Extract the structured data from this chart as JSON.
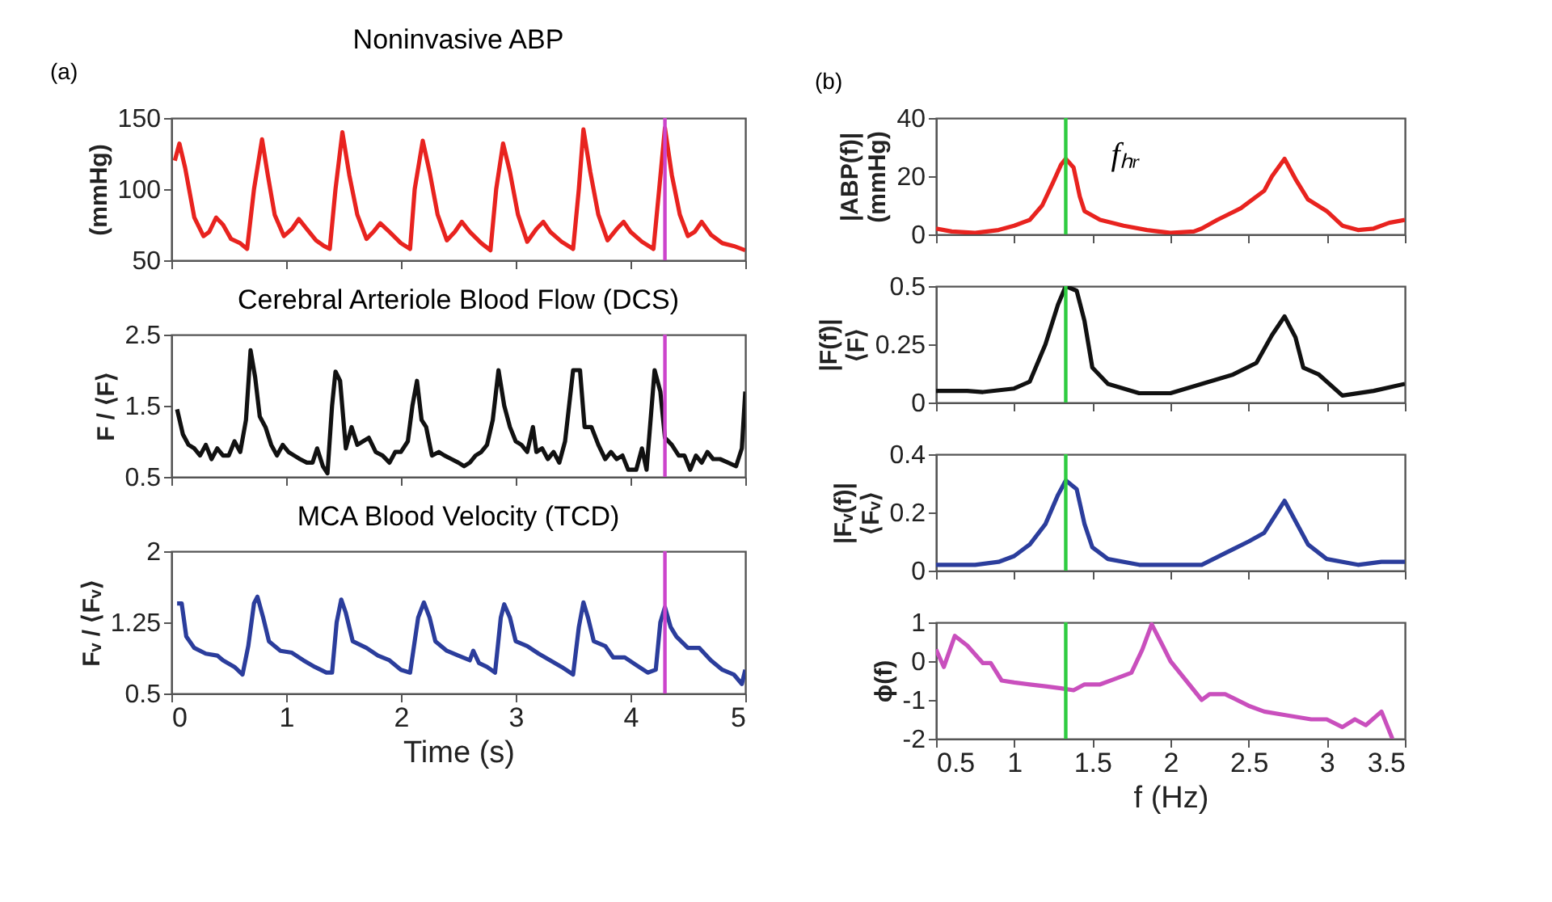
{
  "chart_data": [
    {
      "type": "line",
      "title": "Noninvasive ABP",
      "ylabel": "(mmHg)",
      "color": "#e8231f",
      "xlim": [
        0,
        5
      ],
      "xticks": [
        0,
        1,
        2,
        3,
        4,
        5
      ],
      "ylim": [
        50,
        150
      ],
      "yticks": [
        50,
        100,
        150
      ],
      "tick_labels": "y",
      "annotations": [
        "(a)"
      ],
      "ref_lines": [
        {
          "axis": "x",
          "value": 4.3,
          "color": "#cc44cc"
        }
      ],
      "x": [
        0.03,
        0.07,
        0.12,
        0.2,
        0.28,
        0.33,
        0.39,
        0.45,
        0.52,
        0.6,
        0.66,
        0.72,
        0.79,
        0.84,
        0.9,
        0.98,
        1.05,
        1.11,
        1.18,
        1.26,
        1.33,
        1.38,
        1.43,
        1.49,
        1.55,
        1.62,
        1.7,
        1.76,
        1.82,
        1.9,
        2.0,
        2.08,
        2.12,
        2.19,
        2.25,
        2.32,
        2.4,
        2.47,
        2.53,
        2.6,
        2.7,
        2.78,
        2.83,
        2.89,
        2.95,
        3.02,
        3.1,
        3.18,
        3.24,
        3.3,
        3.4,
        3.5,
        3.55,
        3.59,
        3.65,
        3.72,
        3.8,
        3.88,
        3.94,
        4.0,
        4.1,
        4.2,
        4.25,
        4.3,
        4.36,
        4.43,
        4.5,
        4.56,
        4.62,
        4.7,
        4.8,
        4.9,
        5.0
      ],
      "values": [
        120,
        132,
        115,
        80,
        67,
        70,
        80,
        75,
        65,
        62,
        58,
        100,
        135,
        110,
        82,
        67,
        72,
        79,
        72,
        64,
        60,
        58,
        100,
        140,
        110,
        82,
        65,
        70,
        76,
        70,
        62,
        58,
        100,
        134,
        112,
        82,
        64,
        70,
        77,
        70,
        62,
        57,
        100,
        132,
        112,
        82,
        63,
        72,
        77,
        70,
        63,
        58,
        100,
        142,
        112,
        82,
        64,
        72,
        77,
        70,
        63,
        58,
        100,
        143,
        110,
        82,
        67,
        70,
        77,
        68,
        62,
        60,
        57
      ]
    },
    {
      "type": "line",
      "title": "Cerebral Arteriole Blood Flow (DCS)",
      "ylabel": "F / ⟨F⟩",
      "color": "#111111",
      "xlim": [
        0,
        5
      ],
      "xticks": [
        0,
        1,
        2,
        3,
        4,
        5
      ],
      "ylim": [
        0.5,
        2.5
      ],
      "yticks": [
        0.5,
        1.5,
        2.5
      ],
      "tick_labels": "y",
      "ref_lines": [
        {
          "axis": "x",
          "value": 4.3,
          "color": "#cc44cc"
        }
      ],
      "x": [
        0.05,
        0.1,
        0.15,
        0.2,
        0.25,
        0.3,
        0.35,
        0.4,
        0.45,
        0.5,
        0.55,
        0.6,
        0.65,
        0.69,
        0.73,
        0.77,
        0.82,
        0.87,
        0.92,
        0.97,
        1.02,
        1.07,
        1.12,
        1.18,
        1.23,
        1.27,
        1.32,
        1.36,
        1.4,
        1.43,
        1.47,
        1.52,
        1.57,
        1.62,
        1.67,
        1.72,
        1.78,
        1.84,
        1.9,
        1.95,
        2.0,
        2.06,
        2.1,
        2.14,
        2.18,
        2.22,
        2.27,
        2.33,
        2.38,
        2.44,
        2.5,
        2.55,
        2.6,
        2.65,
        2.7,
        2.75,
        2.8,
        2.85,
        2.9,
        2.95,
        3.0,
        3.05,
        3.1,
        3.15,
        3.18,
        3.23,
        3.28,
        3.33,
        3.38,
        3.43,
        3.5,
        3.56,
        3.6,
        3.66,
        3.72,
        3.78,
        3.83,
        3.88,
        3.93,
        3.98,
        4.05,
        4.1,
        4.14,
        4.18,
        4.21,
        4.26,
        4.3,
        4.36,
        4.42,
        4.47,
        4.52,
        4.57,
        4.62,
        4.67,
        4.72,
        4.78,
        4.85,
        4.92,
        4.97,
        5.0
      ],
      "values": [
        1.45,
        1.1,
        0.95,
        0.9,
        0.8,
        0.95,
        0.75,
        0.9,
        0.8,
        0.8,
        1.0,
        0.85,
        1.3,
        2.28,
        1.9,
        1.35,
        1.2,
        0.95,
        0.8,
        0.95,
        0.85,
        0.8,
        0.75,
        0.7,
        0.7,
        0.9,
        0.65,
        0.55,
        1.5,
        1.98,
        1.85,
        0.9,
        1.2,
        0.95,
        1.0,
        1.05,
        0.85,
        0.8,
        0.7,
        0.85,
        0.85,
        1.0,
        1.5,
        1.85,
        1.3,
        1.2,
        0.8,
        0.85,
        0.8,
        0.75,
        0.7,
        0.65,
        0.7,
        0.8,
        0.85,
        0.95,
        1.3,
        2.0,
        1.5,
        1.2,
        1.0,
        0.95,
        0.85,
        1.2,
        0.85,
        0.9,
        0.75,
        0.85,
        0.7,
        1.0,
        2.0,
        2.0,
        1.2,
        1.2,
        0.95,
        0.75,
        0.85,
        0.75,
        0.8,
        0.6,
        0.6,
        0.9,
        0.6,
        1.4,
        2.0,
        1.7,
        1.05,
        0.95,
        0.8,
        0.8,
        0.6,
        0.8,
        0.7,
        0.85,
        0.75,
        0.75,
        0.7,
        0.65,
        0.9,
        1.7
      ]
    },
    {
      "type": "line",
      "title": "MCA Blood Velocity (TCD)",
      "ylabel": "Fᵥ / ⟨Fᵥ⟩",
      "xlabel": "Time (s)",
      "color": "#2b3d9c",
      "xlim": [
        0,
        5
      ],
      "xticks": [
        0,
        1,
        2,
        3,
        4,
        5
      ],
      "ylim": [
        0.5,
        2
      ],
      "yticks": [
        0.5,
        1.25,
        2
      ],
      "ref_lines": [
        {
          "axis": "x",
          "value": 4.3,
          "color": "#cc44cc"
        }
      ],
      "x": [
        0.05,
        0.09,
        0.13,
        0.2,
        0.3,
        0.4,
        0.45,
        0.55,
        0.62,
        0.67,
        0.72,
        0.75,
        0.8,
        0.85,
        0.95,
        1.05,
        1.15,
        1.25,
        1.35,
        1.4,
        1.44,
        1.48,
        1.52,
        1.58,
        1.7,
        1.8,
        1.9,
        2.0,
        2.08,
        2.15,
        2.2,
        2.25,
        2.3,
        2.4,
        2.5,
        2.6,
        2.63,
        2.68,
        2.75,
        2.82,
        2.87,
        2.9,
        2.95,
        3.0,
        3.1,
        3.2,
        3.3,
        3.4,
        3.5,
        3.55,
        3.59,
        3.63,
        3.68,
        3.78,
        3.85,
        3.95,
        4.05,
        4.15,
        4.22,
        4.26,
        4.3,
        4.35,
        4.4,
        4.5,
        4.6,
        4.7,
        4.8,
        4.9,
        4.97,
        5.0
      ],
      "values": [
        1.45,
        1.45,
        1.1,
        0.98,
        0.92,
        0.9,
        0.85,
        0.78,
        0.7,
        1.0,
        1.45,
        1.52,
        1.3,
        1.05,
        0.95,
        0.93,
        0.85,
        0.78,
        0.72,
        0.72,
        1.25,
        1.49,
        1.35,
        1.05,
        0.98,
        0.9,
        0.85,
        0.75,
        0.72,
        1.3,
        1.46,
        1.3,
        1.05,
        0.95,
        0.9,
        0.85,
        0.95,
        0.82,
        0.78,
        0.72,
        1.3,
        1.44,
        1.3,
        1.05,
        1.0,
        0.92,
        0.85,
        0.78,
        0.7,
        1.2,
        1.46,
        1.3,
        1.05,
        1.0,
        0.88,
        0.88,
        0.8,
        0.72,
        0.75,
        1.25,
        1.41,
        1.2,
        1.1,
        0.98,
        0.98,
        0.85,
        0.75,
        0.7,
        0.6,
        0.75
      ]
    },
    {
      "type": "line",
      "ylabel": "|ABP(f)|\n(mmHg)",
      "color": "#e8231f",
      "xlim": [
        0.5,
        3.5
      ],
      "xticks": [
        0.5,
        1,
        1.5,
        2,
        2.5,
        3,
        3.5
      ],
      "ylim": [
        0,
        40
      ],
      "yticks": [
        0,
        20,
        40
      ],
      "tick_labels": "y",
      "annotations": [
        "(b)",
        {
          "text": "fₕᵣ",
          "x": 1.33,
          "y": 26
        }
      ],
      "ref_lines": [
        {
          "axis": "x",
          "value": 1.33,
          "color": "#2ecc40"
        }
      ],
      "x": [
        0.5,
        0.6,
        0.75,
        0.9,
        1.0,
        1.1,
        1.18,
        1.25,
        1.3,
        1.33,
        1.38,
        1.42,
        1.45,
        1.55,
        1.7,
        1.85,
        2.0,
        2.15,
        2.2,
        2.3,
        2.45,
        2.6,
        2.65,
        2.73,
        2.8,
        2.88,
        3.0,
        3.1,
        3.2,
        3.3,
        3.4,
        3.5
      ],
      "values": [
        2,
        1,
        0.5,
        1.5,
        3,
        5,
        10,
        18,
        24,
        26,
        23,
        13,
        8,
        5,
        3,
        1.5,
        0.5,
        1,
        2,
        5,
        9,
        15,
        20,
        26,
        19,
        12,
        8,
        3,
        1.5,
        2,
        4,
        5
      ]
    },
    {
      "type": "line",
      "ylabel": "|F(f)|\n⟨F⟩",
      "color": "#111111",
      "xlim": [
        0.5,
        3.5
      ],
      "xticks": [
        0.5,
        1,
        1.5,
        2,
        2.5,
        3,
        3.5
      ],
      "ylim": [
        0,
        0.5
      ],
      "yticks": [
        0,
        0.25,
        0.5
      ],
      "tick_labels": "y",
      "ref_lines": [
        {
          "axis": "x",
          "value": 1.33,
          "color": "#2ecc40"
        }
      ],
      "x": [
        0.5,
        0.7,
        0.8,
        1.0,
        1.1,
        1.2,
        1.28,
        1.33,
        1.4,
        1.45,
        1.5,
        1.6,
        1.8,
        2.0,
        2.2,
        2.4,
        2.55,
        2.65,
        2.73,
        2.8,
        2.85,
        2.95,
        3.1,
        3.3,
        3.5
      ],
      "values": [
        0.05,
        0.05,
        0.045,
        0.06,
        0.09,
        0.25,
        0.42,
        0.5,
        0.48,
        0.35,
        0.15,
        0.08,
        0.04,
        0.04,
        0.08,
        0.12,
        0.17,
        0.29,
        0.37,
        0.28,
        0.15,
        0.12,
        0.03,
        0.05,
        0.08
      ]
    },
    {
      "type": "line",
      "ylabel": "|Fᵥ(f)|\n⟨Fᵥ⟩",
      "color": "#2b3d9c",
      "xlim": [
        0.5,
        3.5
      ],
      "xticks": [
        0.5,
        1,
        1.5,
        2,
        2.5,
        3,
        3.5
      ],
      "ylim": [
        0,
        0.4
      ],
      "yticks": [
        0,
        0.2,
        0.4
      ],
      "tick_labels": "y",
      "ref_lines": [
        {
          "axis": "x",
          "value": 1.33,
          "color": "#2ecc40"
        }
      ],
      "x": [
        0.5,
        0.75,
        0.9,
        1.0,
        1.1,
        1.2,
        1.28,
        1.33,
        1.4,
        1.45,
        1.5,
        1.6,
        1.8,
        2.0,
        2.2,
        2.35,
        2.5,
        2.6,
        2.73,
        2.8,
        2.88,
        3.0,
        3.2,
        3.35,
        3.5
      ],
      "values": [
        0.02,
        0.02,
        0.03,
        0.05,
        0.09,
        0.16,
        0.26,
        0.31,
        0.28,
        0.16,
        0.08,
        0.04,
        0.02,
        0.02,
        0.02,
        0.06,
        0.1,
        0.13,
        0.24,
        0.17,
        0.09,
        0.04,
        0.02,
        0.03,
        0.03
      ]
    },
    {
      "type": "line",
      "ylabel": "ϕ(f)",
      "xlabel": "f (Hz)",
      "color": "#c94fbd",
      "xlim": [
        0.5,
        3.5
      ],
      "xticks": [
        0.5,
        1,
        1.5,
        2,
        2.5,
        3,
        3.5
      ],
      "ylim": [
        -2,
        1
      ],
      "yticks": [
        -2,
        -1,
        0,
        1
      ],
      "ref_lines": [
        {
          "axis": "x",
          "value": 1.33,
          "color": "#2ecc40"
        }
      ],
      "x": [
        0.5,
        0.55,
        0.62,
        0.7,
        0.8,
        0.85,
        0.92,
        1.0,
        1.1,
        1.2,
        1.3,
        1.38,
        1.45,
        1.55,
        1.65,
        1.75,
        1.82,
        1.88,
        1.95,
        2.0,
        2.1,
        2.2,
        2.25,
        2.35,
        2.5,
        2.6,
        2.75,
        2.9,
        3.0,
        3.1,
        3.18,
        3.25,
        3.35,
        3.42
      ],
      "values": [
        0.3,
        -0.15,
        0.65,
        0.4,
        -0.05,
        -0.05,
        -0.5,
        -0.55,
        -0.6,
        -0.65,
        -0.7,
        -0.75,
        -0.6,
        -0.6,
        -0.45,
        -0.3,
        0.3,
        0.95,
        0.4,
        0.0,
        -0.5,
        -1.0,
        -0.85,
        -0.85,
        -1.15,
        -1.3,
        -1.4,
        -1.5,
        -1.5,
        -1.7,
        -1.5,
        -1.65,
        -1.3,
        -2.0
      ]
    }
  ]
}
